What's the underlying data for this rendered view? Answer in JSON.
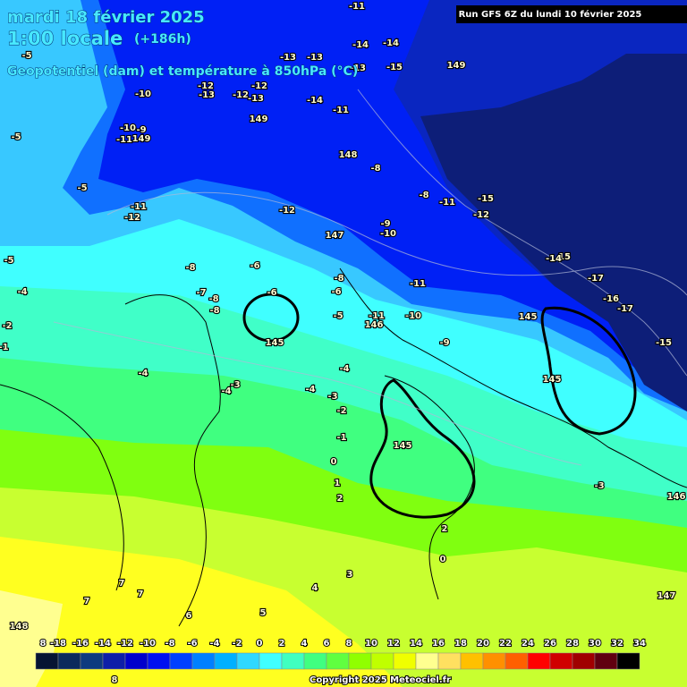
{
  "header": {
    "title": "mardi 18 février 2025",
    "time": "1:00 locale",
    "lead": "(+186h)",
    "subtitle": "Geopotentiel (dam) et température à 850hPa (°C)"
  },
  "run_info": "Run GFS 6Z du lundi 10 février 2025",
  "map_labels": [
    "-11",
    "-5",
    "-13",
    "-13",
    "-14",
    "-14",
    "-15",
    "-13",
    "149",
    "-10",
    "-12",
    "-12",
    "-13",
    "-12",
    "-13",
    "-14",
    "-11",
    "149",
    "-10",
    "-9",
    "-11",
    "149",
    "-5",
    "148",
    "-8",
    "-5",
    "-8",
    "-11",
    "-15",
    "-12",
    "-11",
    "-12",
    "-12",
    "-9",
    "-10",
    "147",
    "-5",
    "-8",
    "-6",
    "15",
    "-14",
    "-11",
    "-17",
    "-7",
    "-8",
    "-6",
    "-8",
    "-6",
    "-4",
    "-16",
    "-17",
    "-8",
    "-5",
    "-11",
    "-10",
    "146",
    "145",
    "-2",
    "-1",
    "145",
    "-9",
    "-15",
    "-4",
    "-4",
    "-4",
    "-3",
    "-4",
    "-3",
    "-2",
    "145",
    "-1",
    "145",
    "0",
    "-3",
    "1",
    "2",
    "146",
    "2",
    "0",
    "3",
    "4",
    "7",
    "7",
    "7",
    "147",
    "6",
    "5",
    "148",
    "8"
  ],
  "legend": {
    "labels": [
      "8",
      "-18",
      "-16",
      "-14",
      "-12",
      "-10",
      "-8",
      "-6",
      "-4",
      "-2",
      "0",
      "2",
      "4",
      "6",
      "8",
      "10",
      "12",
      "14",
      "16",
      "18",
      "20",
      "22",
      "24",
      "26",
      "28",
      "30",
      "32",
      "34"
    ],
    "colors": [
      "#061433",
      "#0b2a5c",
      "#0d3a7f",
      "#0e1ea8",
      "#0000cc",
      "#0010f0",
      "#0040ff",
      "#0080ff",
      "#00b0ff",
      "#30d8ff",
      "#40ffff",
      "#40ffc0",
      "#40ff80",
      "#60ff40",
      "#90ff00",
      "#c0ff00",
      "#f0ff00",
      "#ffff90",
      "#ffe060",
      "#ffc000",
      "#ff9000",
      "#ff6000",
      "#ff0000",
      "#d00000",
      "#a00000",
      "#600010",
      "#000000"
    ]
  },
  "copyright": "Copyright 2025 Meteociel.fr"
}
